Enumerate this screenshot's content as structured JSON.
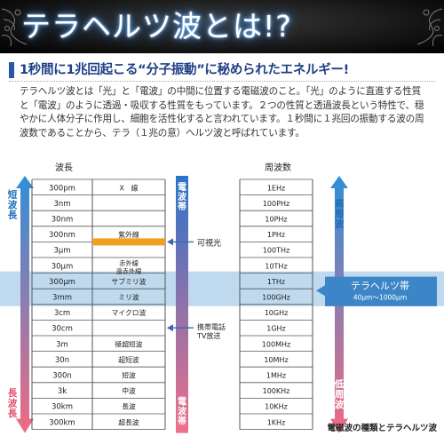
{
  "header": {
    "title": "テラヘルツ波とは!?"
  },
  "subtitle": "1秒間に1兆回起こる“分子振動”に秘められたエネルギー!",
  "body_text": "テラヘルツ波とは「光」と「電波」の中間に位置する電磁波のこと。「光」のように直進する性質と「電波」のように透過・吸収する性質をもっています。２つの性質と透過波長という特性で、穏やかに人体分子に作用し、細胞を活性化すると言われています。１秒間に１兆回の振動する波の周波数であることから、テラ（１兆の意）ヘルツ波と呼ばれています。",
  "diagram": {
    "wavelength_header": "波長",
    "frequency_header": "周波数",
    "left_arrow": {
      "top_label": "短波長",
      "bottom_label": "長波長"
    },
    "right_arrow": {
      "top_label": "高周波",
      "bottom_label": "低周波"
    },
    "center_band": {
      "top_label": "電波帯",
      "bottom_label": "電波帯"
    },
    "rows": [
      {
        "wavelength": "300pm",
        "name": "X　線",
        "frequency": "1EHz"
      },
      {
        "wavelength": "3nm",
        "name": "",
        "frequency": "100PHz"
      },
      {
        "wavelength": "30nm",
        "name": "",
        "frequency": "10PHz"
      },
      {
        "wavelength": "300nm",
        "name": "紫外線",
        "frequency": "1PHz"
      },
      {
        "wavelength": "3μm",
        "name": "",
        "frequency": "100THz"
      },
      {
        "wavelength": "30μm",
        "name": "赤外線\n遠赤外線",
        "frequency": "10THz"
      },
      {
        "wavelength": "300μm",
        "name": "サブミリ波",
        "frequency": "1THz"
      },
      {
        "wavelength": "3mm",
        "name": "ミリ波",
        "frequency": "100GHz"
      },
      {
        "wavelength": "3cm",
        "name": "マイクロ波",
        "frequency": "10GHz"
      },
      {
        "wavelength": "30cm",
        "name": "",
        "frequency": "1GHz"
      },
      {
        "wavelength": "3m",
        "name": "極超短波",
        "frequency": "100MHz"
      },
      {
        "wavelength": "30n",
        "name": "超短波",
        "frequency": "10MHz"
      },
      {
        "wavelength": "300n",
        "name": "短波",
        "frequency": "1MHz"
      },
      {
        "wavelength": "3k",
        "name": "中波",
        "frequency": "100KHz"
      },
      {
        "wavelength": "30km",
        "name": "長波",
        "frequency": "10KHz"
      },
      {
        "wavelength": "300km",
        "name": "超長波",
        "frequency": "1KHz"
      }
    ],
    "visible_light_label": "可視光",
    "mobile_label": "携帯電話\nTV放送",
    "terahertz_label": "テラヘルツ帯",
    "terahertz_range": "40μm〜1000μm",
    "colors": {
      "left_arrow_top": "#2f8fd8",
      "left_arrow_bottom": "#f06a83",
      "center_band_top": "#2b74c9",
      "center_band_bottom": "#f0708a",
      "terahertz_band": "#a9cdea",
      "terahertz_label_bg": "#3c86c8",
      "visible_light_bar": "#f0a020",
      "pointer_arrow": "#3b67b3"
    }
  },
  "caption": "電磁波の種類とテラヘルツ波"
}
